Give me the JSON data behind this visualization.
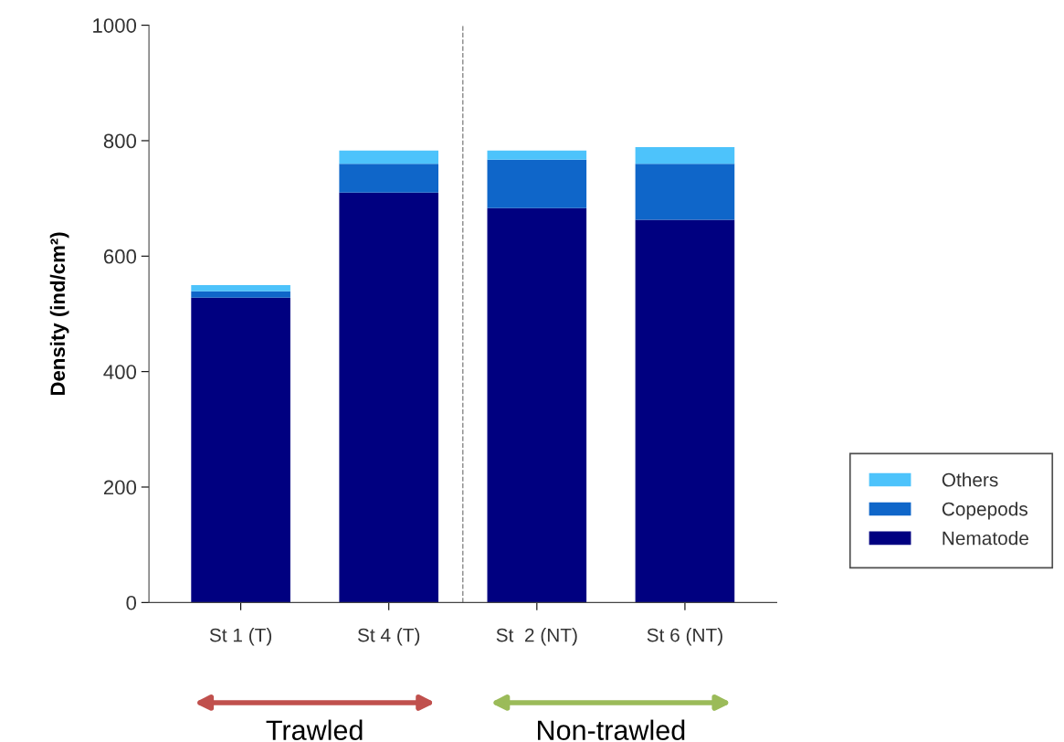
{
  "chart_data": {
    "type": "bar",
    "stacked": true,
    "ylabel": "Density (ind/cm²)",
    "categories": [
      "St 1 (T)",
      "St 4 (T)",
      "St  2 (NT)",
      "St 6 (NT)"
    ],
    "series": [
      {
        "name": "Nematode",
        "color": "#000080",
        "values": [
          528,
          710,
          683,
          663
        ]
      },
      {
        "name": "Copepods",
        "color": "#0f66c9",
        "values": [
          11,
          50,
          84,
          97
        ]
      },
      {
        "name": "Others",
        "color": "#4dc3fb",
        "values": [
          11,
          23,
          16,
          29
        ]
      }
    ],
    "ylim": [
      0,
      1000
    ],
    "yticks": [
      0,
      200,
      400,
      600,
      800,
      1000
    ],
    "annotations": [
      "Trawled",
      "Non-trawled"
    ],
    "legend": "right",
    "grid": false
  }
}
